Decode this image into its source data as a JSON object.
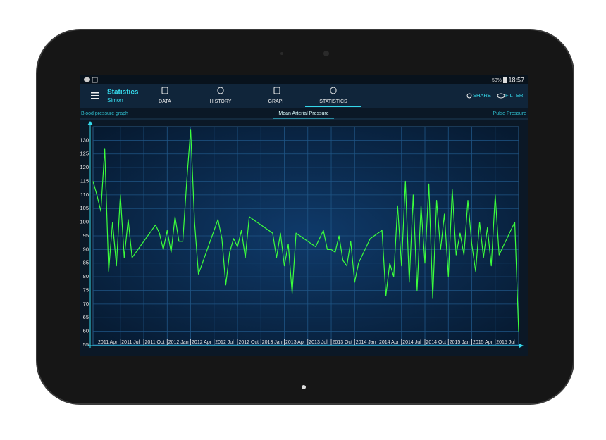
{
  "status_bar": {
    "battery": "50%",
    "time": "18:57"
  },
  "app_bar": {
    "title": "Statistics",
    "subtitle": "Simon",
    "tabs": [
      "DATA",
      "HISTORY",
      "GRAPH",
      "STATISTICS"
    ],
    "actions": [
      "SHARE",
      "FILTER"
    ]
  },
  "sub_tabs": [
    "Blood pressure graph",
    "Mean Arterial Pressure",
    "Pulse Pressure"
  ],
  "chart_data": {
    "type": "line",
    "color": "#3cff3c",
    "grid": true,
    "ylim": [
      55,
      135
    ],
    "yticks": [
      55,
      60,
      65,
      70,
      75,
      80,
      85,
      90,
      95,
      100,
      105,
      110,
      115,
      120,
      125,
      130
    ],
    "categories": [
      null,
      "2011 Apr",
      null,
      null,
      null,
      null,
      null,
      "2011 Jul",
      null,
      null,
      null,
      null,
      null,
      "2011 Oct",
      null,
      null,
      null,
      null,
      null,
      "2012 Jan",
      null,
      null,
      null,
      null,
      null,
      "2012 Apr",
      null,
      null,
      null,
      null,
      null,
      "2012 Jul",
      null,
      null,
      null,
      null,
      null,
      "2012 Oct",
      null,
      null,
      null,
      null,
      null,
      "2013 Jan",
      null,
      null,
      null,
      null,
      null,
      "2013 Apr",
      null,
      null,
      null,
      null,
      null,
      "2013 Jul",
      null,
      null,
      null,
      null,
      null,
      "2013 Oct",
      null,
      null,
      null,
      null,
      null,
      "2014 Jan",
      null,
      null,
      null,
      null,
      null,
      "2014 Apr",
      null,
      null,
      null,
      null,
      null,
      "2014 Jul",
      null,
      null,
      null,
      null,
      null,
      "2014 Oct",
      null,
      null,
      null,
      null,
      null,
      "2015 Jan",
      null,
      null,
      null,
      null,
      null,
      "2015 Apr",
      null,
      null,
      null,
      null,
      null,
      "2015 Jul",
      null,
      null,
      null,
      null,
      null,
      null
    ],
    "values": [
      115,
      110,
      104,
      127,
      82,
      100,
      84,
      110,
      87,
      101,
      87,
      89,
      91,
      93,
      95,
      97,
      99,
      96,
      90,
      97,
      89,
      102,
      93,
      93,
      115,
      134,
      100,
      81,
      85,
      89,
      93,
      97,
      101,
      94,
      77,
      89,
      94,
      91,
      97,
      87,
      102,
      101,
      100,
      99,
      98,
      97,
      96,
      87,
      96,
      84,
      92,
      74,
      96,
      95,
      94,
      93,
      92,
      91,
      94,
      97,
      90,
      90,
      89,
      95,
      86,
      84,
      93,
      78,
      85,
      88,
      91,
      94,
      95,
      96,
      97,
      73,
      85,
      80,
      106,
      84,
      115,
      78,
      110,
      75,
      106,
      85,
      114,
      72,
      108,
      90,
      103,
      80,
      112,
      88,
      96,
      88,
      108,
      92,
      82,
      100,
      87,
      98,
      84,
      110,
      88,
      91,
      94,
      97,
      100,
      60
    ]
  }
}
